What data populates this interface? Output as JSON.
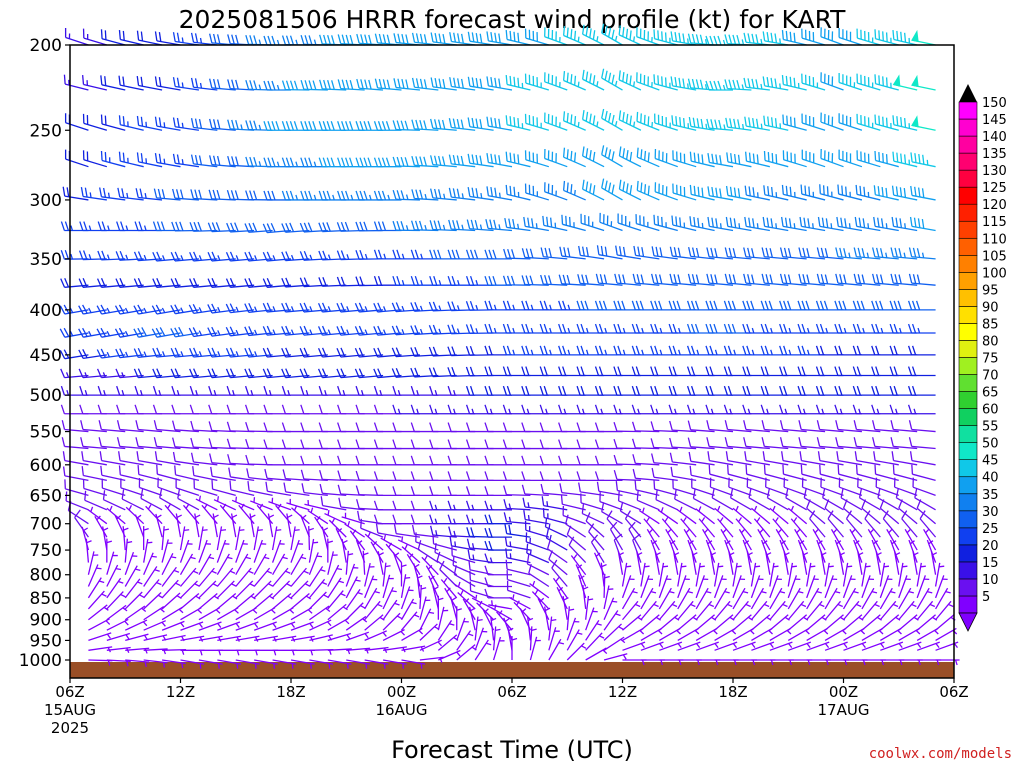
{
  "chart_data": {
    "type": "wind_barb_time_height",
    "title": "2025081506 HRRR forecast wind profile (kt) for KART",
    "xlabel": "Forecast Time (UTC)",
    "credit": "coolwx.com/models",
    "y_axis": {
      "label": "",
      "ticks": [
        "200",
        "250",
        "300",
        "350",
        "400",
        "450",
        "500",
        "550",
        "600",
        "650",
        "700",
        "750",
        "800",
        "850",
        "900",
        "950",
        "1000"
      ],
      "range_hpa": [
        200,
        1000
      ],
      "scale": "log-pressure"
    },
    "x_axis": {
      "range_hours": [
        0,
        48
      ],
      "ticks": [
        {
          "h": 0,
          "label": "06Z",
          "sub1": "15AUG",
          "sub2": "2025"
        },
        {
          "h": 6,
          "label": "12Z",
          "sub1": "",
          "sub2": ""
        },
        {
          "h": 12,
          "label": "18Z",
          "sub1": "",
          "sub2": ""
        },
        {
          "h": 18,
          "label": "00Z",
          "sub1": "16AUG",
          "sub2": ""
        },
        {
          "h": 24,
          "label": "06Z",
          "sub1": "",
          "sub2": ""
        },
        {
          "h": 30,
          "label": "12Z",
          "sub1": "",
          "sub2": ""
        },
        {
          "h": 36,
          "label": "18Z",
          "sub1": "",
          "sub2": ""
        },
        {
          "h": 42,
          "label": "00Z",
          "sub1": "17AUG",
          "sub2": ""
        },
        {
          "h": 48,
          "label": "06Z",
          "sub1": "",
          "sub2": ""
        }
      ]
    },
    "colorbar": {
      "levels": [
        "5",
        "10",
        "15",
        "20",
        "25",
        "30",
        "35",
        "40",
        "45",
        "50",
        "55",
        "60",
        "65",
        "70",
        "75",
        "80",
        "85",
        "90",
        "95",
        "100",
        "105",
        "110",
        "115",
        "120",
        "125",
        "130",
        "135",
        "140",
        "145",
        "150"
      ],
      "colors": [
        "#8000ff",
        "#6a10f0",
        "#3a10e8",
        "#1020e0",
        "#1040f0",
        "#1060f0",
        "#1080f0",
        "#10a0f0",
        "#10c8e8",
        "#10e8c8",
        "#10e0a0",
        "#10d060",
        "#30d030",
        "#60e030",
        "#a0f020",
        "#e0f010",
        "#ffff00",
        "#ffe000",
        "#ffc000",
        "#ffa000",
        "#ff8000",
        "#ff6000",
        "#ff4000",
        "#ff2000",
        "#ff0000",
        "#ff0040",
        "#ff0070",
        "#ff00a0",
        "#ff00d0",
        "#ff00ff"
      ]
    },
    "levels_hpa": [
      200,
      225,
      250,
      275,
      300,
      325,
      350,
      375,
      400,
      425,
      450,
      475,
      500,
      525,
      550,
      575,
      600,
      625,
      650,
      675,
      700,
      725,
      750,
      775,
      800,
      825,
      850,
      875,
      900,
      925,
      950,
      975,
      1000
    ],
    "anchor_hours": [
      0,
      6,
      12,
      18,
      24,
      30,
      36,
      42,
      48
    ],
    "speed_kt": [
      [
        15,
        20,
        35,
        40,
        40,
        45,
        45,
        40,
        50
      ],
      [
        15,
        22,
        37,
        42,
        42,
        47,
        47,
        42,
        52
      ],
      [
        18,
        25,
        38,
        42,
        42,
        45,
        45,
        40,
        50
      ],
      [
        20,
        25,
        35,
        40,
        38,
        42,
        40,
        38,
        45
      ],
      [
        20,
        28,
        32,
        35,
        35,
        38,
        38,
        36,
        40
      ],
      [
        22,
        28,
        30,
        32,
        35,
        36,
        36,
        35,
        38
      ],
      [
        22,
        25,
        25,
        25,
        30,
        32,
        32,
        32,
        35
      ],
      [
        20,
        22,
        22,
        22,
        28,
        30,
        30,
        30,
        32
      ],
      [
        22,
        25,
        25,
        25,
        25,
        28,
        28,
        28,
        28
      ],
      [
        25,
        28,
        25,
        25,
        25,
        25,
        28,
        25,
        25
      ],
      [
        20,
        25,
        22,
        22,
        22,
        25,
        25,
        22,
        22
      ],
      [
        15,
        18,
        18,
        18,
        20,
        22,
        22,
        20,
        20
      ],
      [
        12,
        15,
        15,
        15,
        18,
        20,
        20,
        18,
        18
      ],
      [
        10,
        12,
        12,
        12,
        15,
        15,
        15,
        15,
        15
      ],
      [
        10,
        10,
        10,
        10,
        12,
        12,
        12,
        12,
        12
      ],
      [
        10,
        10,
        10,
        10,
        12,
        10,
        10,
        10,
        10
      ],
      [
        10,
        10,
        10,
        10,
        12,
        10,
        10,
        10,
        10
      ],
      [
        10,
        8,
        8,
        10,
        12,
        10,
        10,
        8,
        10
      ],
      [
        8,
        8,
        8,
        10,
        12,
        10,
        8,
        8,
        8
      ],
      [
        8,
        8,
        5,
        10,
        15,
        10,
        8,
        8,
        8
      ],
      [
        8,
        5,
        5,
        8,
        18,
        8,
        5,
        8,
        8
      ],
      [
        8,
        5,
        5,
        8,
        20,
        8,
        5,
        8,
        8
      ],
      [
        5,
        5,
        5,
        5,
        18,
        8,
        5,
        5,
        5
      ],
      [
        5,
        5,
        5,
        5,
        15,
        8,
        5,
        5,
        5
      ],
      [
        5,
        5,
        5,
        5,
        12,
        5,
        5,
        5,
        5
      ],
      [
        5,
        5,
        5,
        5,
        10,
        5,
        5,
        5,
        5
      ],
      [
        5,
        5,
        5,
        5,
        8,
        5,
        5,
        5,
        5
      ],
      [
        5,
        5,
        5,
        5,
        5,
        5,
        5,
        5,
        5
      ],
      [
        5,
        5,
        5,
        5,
        5,
        5,
        5,
        5,
        5
      ],
      [
        5,
        5,
        5,
        5,
        5,
        5,
        5,
        5,
        5
      ],
      [
        5,
        5,
        5,
        5,
        5,
        5,
        5,
        5,
        5
      ],
      [
        5,
        5,
        5,
        5,
        5,
        5,
        5,
        5,
        5
      ],
      [
        5,
        5,
        5,
        5,
        5,
        5,
        5,
        5,
        5
      ]
    ],
    "dir_deg": [
      [
        290,
        280,
        270,
        275,
        280,
        300,
        270,
        290,
        280
      ],
      [
        285,
        280,
        270,
        275,
        280,
        300,
        270,
        290,
        280
      ],
      [
        290,
        280,
        270,
        270,
        280,
        300,
        275,
        290,
        280
      ],
      [
        290,
        280,
        270,
        270,
        280,
        300,
        280,
        290,
        280
      ],
      [
        280,
        275,
        270,
        270,
        280,
        300,
        280,
        285,
        280
      ],
      [
        270,
        270,
        265,
        270,
        275,
        290,
        280,
        280,
        280
      ],
      [
        270,
        265,
        265,
        270,
        270,
        280,
        275,
        275,
        275
      ],
      [
        265,
        265,
        265,
        270,
        270,
        275,
        275,
        275,
        275
      ],
      [
        260,
        260,
        265,
        265,
        270,
        270,
        270,
        270,
        270
      ],
      [
        260,
        260,
        265,
        265,
        270,
        270,
        270,
        270,
        270
      ],
      [
        260,
        265,
        265,
        265,
        270,
        270,
        270,
        270,
        270
      ],
      [
        265,
        265,
        265,
        265,
        270,
        270,
        270,
        270,
        270
      ],
      [
        270,
        270,
        270,
        270,
        270,
        270,
        270,
        270,
        270
      ],
      [
        270,
        270,
        270,
        270,
        270,
        270,
        270,
        270,
        270
      ],
      [
        275,
        275,
        270,
        270,
        270,
        270,
        275,
        275,
        275
      ],
      [
        275,
        275,
        270,
        270,
        270,
        270,
        275,
        275,
        275
      ],
      [
        280,
        280,
        270,
        270,
        270,
        270,
        280,
        280,
        280
      ],
      [
        280,
        285,
        275,
        270,
        270,
        270,
        285,
        285,
        285
      ],
      [
        285,
        290,
        280,
        270,
        270,
        280,
        290,
        290,
        290
      ],
      [
        290,
        300,
        290,
        270,
        270,
        290,
        300,
        300,
        300
      ],
      [
        300,
        320,
        320,
        270,
        270,
        300,
        310,
        310,
        310
      ],
      [
        320,
        350,
        350,
        280,
        270,
        320,
        320,
        320,
        320
      ],
      [
        340,
        10,
        10,
        300,
        270,
        330,
        330,
        330,
        330
      ],
      [
        350,
        20,
        20,
        320,
        270,
        340,
        340,
        340,
        340
      ],
      [
        10,
        30,
        30,
        340,
        270,
        350,
        350,
        350,
        350
      ],
      [
        20,
        40,
        40,
        360,
        270,
        10,
        10,
        10,
        10
      ],
      [
        30,
        45,
        45,
        10,
        270,
        20,
        20,
        20,
        20
      ],
      [
        40,
        50,
        50,
        20,
        280,
        30,
        30,
        30,
        30
      ],
      [
        50,
        60,
        60,
        30,
        300,
        40,
        40,
        40,
        40
      ],
      [
        60,
        70,
        70,
        40,
        320,
        50,
        50,
        50,
        50
      ],
      [
        70,
        80,
        80,
        60,
        340,
        60,
        60,
        60,
        60
      ],
      [
        80,
        90,
        90,
        80,
        350,
        70,
        70,
        70,
        70
      ],
      [
        90,
        100,
        100,
        100,
        360,
        90,
        90,
        90,
        90
      ]
    ]
  }
}
